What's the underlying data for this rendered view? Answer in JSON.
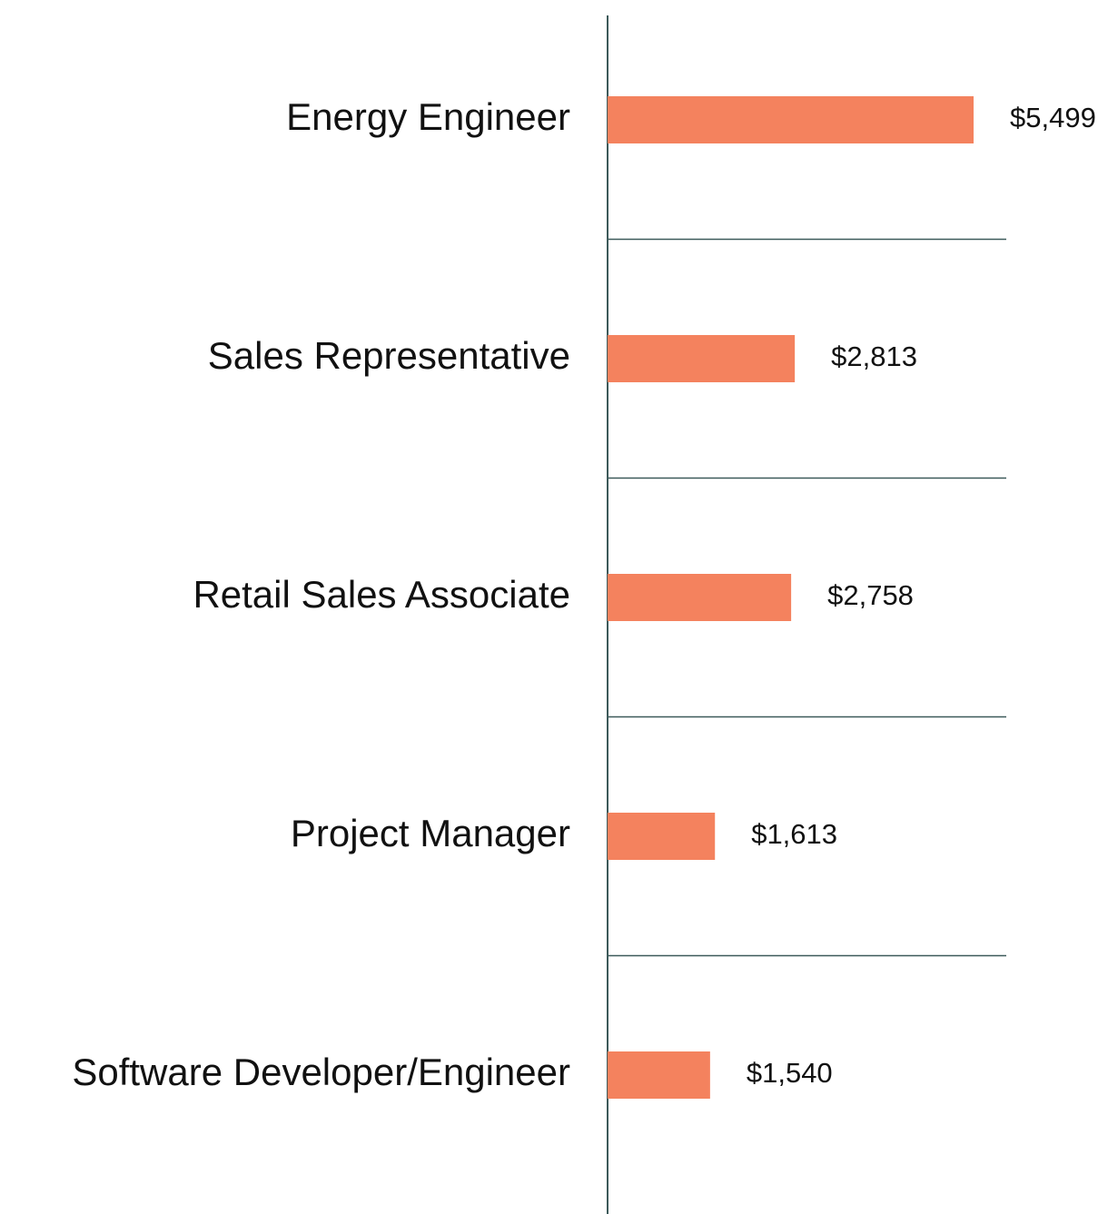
{
  "chart_data": {
    "type": "bar",
    "orientation": "horizontal",
    "categories": [
      "Energy Engineer",
      "Sales Representative",
      "Retail Sales Associate",
      "Project Manager",
      "Software Developer/Engineer"
    ],
    "values": [
      5499,
      2813,
      2758,
      1613,
      1540
    ],
    "value_labels": [
      "$5,499",
      "$2,813",
      "$2,758",
      "$1,613",
      "$1,540"
    ],
    "color": "#f4825e"
  }
}
